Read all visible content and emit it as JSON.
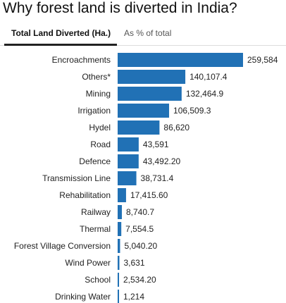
{
  "header": {
    "title": "Why forest land is diverted in India?"
  },
  "tabs": [
    {
      "label": "Total Land Diverted (Ha.)",
      "active": true
    },
    {
      "label": "As % of total",
      "active": false
    }
  ],
  "colors": {
    "bar": "#2171b5",
    "active_tab_underline": "#222222"
  },
  "chart_data": {
    "type": "bar",
    "orientation": "horizontal",
    "categories": [
      "Encroachments",
      "Others*",
      "Mining",
      "Irrigation",
      "Hydel",
      "Road",
      "Defence",
      "Transmission Line",
      "Rehabilitation",
      "Railway",
      "Thermal",
      "Forest Village Conversion",
      "Wind Power",
      "School",
      "Drinking Water"
    ],
    "values": [
      259584,
      140107.4,
      132464.9,
      106509.3,
      86620,
      43591,
      43492.2,
      38731.4,
      17415.6,
      8740.7,
      7554.5,
      5040.2,
      3631,
      2534.2,
      1214
    ],
    "value_labels": [
      "259,584",
      "140,107.4",
      "132,464.9",
      "106,509.3",
      "86,620",
      "43,591",
      "43,492.20",
      "38,731.4",
      "17,415.60",
      "8,740.7",
      "7,554.5",
      "5,040.20",
      "3,631",
      "2,534.20",
      "1,214"
    ],
    "xlim": [
      0,
      259584
    ]
  }
}
